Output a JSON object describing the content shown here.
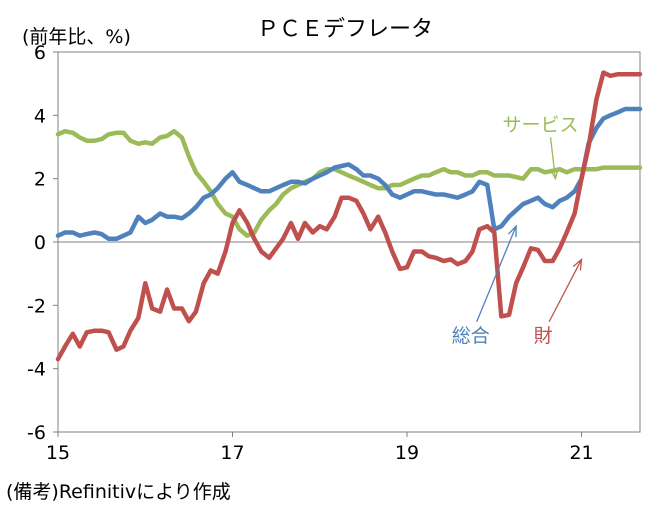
{
  "chart_data": {
    "type": "line",
    "title": "ＰＣＥデフレータ",
    "ylabel": "(前年比、%)",
    "note": "(備考)Refinitivにより作成",
    "ylim": [
      -6,
      6
    ],
    "yticks": [
      6,
      4,
      2,
      0,
      -2,
      -4,
      -6
    ],
    "xlim": [
      2015.0,
      2021.67
    ],
    "xticks": [
      {
        "value": 2015,
        "label": "15"
      },
      {
        "value": 2017,
        "label": "17"
      },
      {
        "value": 2019,
        "label": "19"
      },
      {
        "value": 2021,
        "label": "21"
      }
    ],
    "grid": false,
    "series": [
      {
        "name": "サービス",
        "color": "#9BBB59",
        "x": [
          2015.0,
          2015.08,
          2015.17,
          2015.25,
          2015.33,
          2015.42,
          2015.5,
          2015.58,
          2015.67,
          2015.75,
          2015.83,
          2015.92,
          2016.0,
          2016.08,
          2016.17,
          2016.25,
          2016.33,
          2016.42,
          2016.5,
          2016.58,
          2016.67,
          2016.75,
          2016.83,
          2016.92,
          2017.0,
          2017.08,
          2017.17,
          2017.25,
          2017.33,
          2017.42,
          2017.5,
          2017.58,
          2017.67,
          2017.75,
          2017.83,
          2017.92,
          2018.0,
          2018.08,
          2018.17,
          2018.25,
          2018.33,
          2018.42,
          2018.5,
          2018.58,
          2018.67,
          2018.75,
          2018.83,
          2018.92,
          2019.0,
          2019.08,
          2019.17,
          2019.25,
          2019.33,
          2019.42,
          2019.5,
          2019.58,
          2019.67,
          2019.75,
          2019.83,
          2019.92,
          2020.0,
          2020.08,
          2020.17,
          2020.25,
          2020.33,
          2020.42,
          2020.5,
          2020.58,
          2020.67,
          2020.75,
          2020.83,
          2020.92,
          2021.0,
          2021.08,
          2021.17,
          2021.25,
          2021.33,
          2021.42,
          2021.5,
          2021.58,
          2021.67
        ],
        "values": [
          3.4,
          3.5,
          3.45,
          3.3,
          3.2,
          3.2,
          3.25,
          3.4,
          3.45,
          3.45,
          3.2,
          3.1,
          3.15,
          3.1,
          3.3,
          3.35,
          3.5,
          3.3,
          2.7,
          2.2,
          1.9,
          1.6,
          1.2,
          0.9,
          0.8,
          0.4,
          0.2,
          0.3,
          0.7,
          1.0,
          1.2,
          1.5,
          1.7,
          1.8,
          1.9,
          2.0,
          2.2,
          2.3,
          2.3,
          2.2,
          2.1,
          2.0,
          1.9,
          1.8,
          1.7,
          1.7,
          1.8,
          1.8,
          1.9,
          2.0,
          2.1,
          2.1,
          2.2,
          2.3,
          2.2,
          2.2,
          2.1,
          2.1,
          2.2,
          2.2,
          2.1,
          2.1,
          2.1,
          2.05,
          2.0,
          2.3,
          2.3,
          2.2,
          2.25,
          2.3,
          2.2,
          2.3,
          2.3,
          2.3,
          2.3,
          2.35,
          2.35,
          2.35,
          2.35,
          2.35,
          2.35
        ]
      },
      {
        "name": "総合",
        "color": "#4F81BD",
        "x": [
          2015.0,
          2015.08,
          2015.17,
          2015.25,
          2015.33,
          2015.42,
          2015.5,
          2015.58,
          2015.67,
          2015.75,
          2015.83,
          2015.92,
          2016.0,
          2016.08,
          2016.17,
          2016.25,
          2016.33,
          2016.42,
          2016.5,
          2016.58,
          2016.67,
          2016.75,
          2016.83,
          2016.92,
          2017.0,
          2017.08,
          2017.17,
          2017.25,
          2017.33,
          2017.42,
          2017.5,
          2017.58,
          2017.67,
          2017.75,
          2017.83,
          2017.92,
          2018.0,
          2018.08,
          2018.17,
          2018.25,
          2018.33,
          2018.42,
          2018.5,
          2018.58,
          2018.67,
          2018.75,
          2018.83,
          2018.92,
          2019.0,
          2019.08,
          2019.17,
          2019.25,
          2019.33,
          2019.42,
          2019.5,
          2019.58,
          2019.67,
          2019.75,
          2019.83,
          2019.92,
          2020.0,
          2020.08,
          2020.17,
          2020.25,
          2020.33,
          2020.42,
          2020.5,
          2020.58,
          2020.67,
          2020.75,
          2020.83,
          2020.92,
          2021.0,
          2021.08,
          2021.17,
          2021.25,
          2021.33,
          2021.42,
          2021.5,
          2021.58,
          2021.67
        ],
        "values": [
          0.2,
          0.3,
          0.3,
          0.2,
          0.25,
          0.3,
          0.25,
          0.1,
          0.1,
          0.2,
          0.3,
          0.8,
          0.6,
          0.7,
          0.9,
          0.8,
          0.8,
          0.75,
          0.9,
          1.1,
          1.4,
          1.5,
          1.7,
          2.0,
          2.2,
          1.9,
          1.8,
          1.7,
          1.6,
          1.6,
          1.7,
          1.8,
          1.9,
          1.9,
          1.85,
          2.0,
          2.1,
          2.2,
          2.35,
          2.4,
          2.45,
          2.3,
          2.1,
          2.1,
          2.0,
          1.8,
          1.5,
          1.4,
          1.5,
          1.6,
          1.6,
          1.55,
          1.5,
          1.5,
          1.45,
          1.4,
          1.5,
          1.6,
          1.9,
          1.8,
          0.4,
          0.5,
          0.8,
          1.0,
          1.2,
          1.3,
          1.4,
          1.2,
          1.1,
          1.3,
          1.4,
          1.6,
          2.0,
          3.1,
          3.6,
          3.9,
          4.0,
          4.1,
          4.2,
          4.2,
          4.2
        ]
      },
      {
        "name": "財",
        "color": "#C0504D",
        "x": [
          2015.0,
          2015.08,
          2015.17,
          2015.25,
          2015.33,
          2015.42,
          2015.5,
          2015.58,
          2015.67,
          2015.75,
          2015.83,
          2015.92,
          2016.0,
          2016.08,
          2016.17,
          2016.25,
          2016.33,
          2016.42,
          2016.5,
          2016.58,
          2016.67,
          2016.75,
          2016.83,
          2016.92,
          2017.0,
          2017.08,
          2017.17,
          2017.25,
          2017.33,
          2017.42,
          2017.5,
          2017.58,
          2017.67,
          2017.75,
          2017.83,
          2017.92,
          2018.0,
          2018.08,
          2018.17,
          2018.25,
          2018.33,
          2018.42,
          2018.5,
          2018.58,
          2018.67,
          2018.75,
          2018.83,
          2018.92,
          2019.0,
          2019.08,
          2019.17,
          2019.25,
          2019.33,
          2019.42,
          2019.5,
          2019.58,
          2019.67,
          2019.75,
          2019.83,
          2019.92,
          2020.0,
          2020.08,
          2020.17,
          2020.25,
          2020.33,
          2020.42,
          2020.5,
          2020.58,
          2020.67,
          2020.75,
          2020.83,
          2020.92,
          2021.0,
          2021.08,
          2021.17,
          2021.25,
          2021.33,
          2021.42,
          2021.5,
          2021.58,
          2021.67
        ],
        "values": [
          -3.7,
          -3.3,
          -2.9,
          -3.3,
          -2.85,
          -2.8,
          -2.8,
          -2.85,
          -3.4,
          -3.3,
          -2.8,
          -2.4,
          -1.3,
          -2.1,
          -2.2,
          -1.5,
          -2.1,
          -2.1,
          -2.5,
          -2.2,
          -1.3,
          -0.9,
          -1.0,
          -0.3,
          0.6,
          1.0,
          0.6,
          0.1,
          -0.3,
          -0.5,
          -0.2,
          0.1,
          0.6,
          0.1,
          0.6,
          0.3,
          0.5,
          0.4,
          0.8,
          1.4,
          1.4,
          1.3,
          0.9,
          0.4,
          0.8,
          0.3,
          -0.3,
          -0.85,
          -0.8,
          -0.3,
          -0.3,
          -0.45,
          -0.5,
          -0.6,
          -0.55,
          -0.7,
          -0.6,
          -0.3,
          0.4,
          0.5,
          0.3,
          -2.35,
          -2.3,
          -1.3,
          -0.8,
          -0.2,
          -0.25,
          -0.6,
          -0.6,
          -0.2,
          0.3,
          0.9,
          2.0,
          3.0,
          4.5,
          5.35,
          5.25,
          5.3,
          5.3,
          5.3,
          5.3
        ]
      }
    ],
    "annotations": [
      {
        "text": "サービス",
        "series": "サービス",
        "color": "#9BBB59",
        "target_x": 2020.7,
        "target_y": 2.0,
        "label_x": 2020.53,
        "label_y": 3.5
      },
      {
        "text": "総合",
        "series": "総合",
        "color": "#4F81BD",
        "target_x": 2020.25,
        "target_y": 0.5,
        "label_x": 2019.73,
        "label_y": -3.15
      },
      {
        "text": "財",
        "series": "財",
        "color": "#C0504D",
        "target_x": 2021.0,
        "target_y": -0.55,
        "label_x": 2020.56,
        "label_y": -3.15
      }
    ]
  }
}
